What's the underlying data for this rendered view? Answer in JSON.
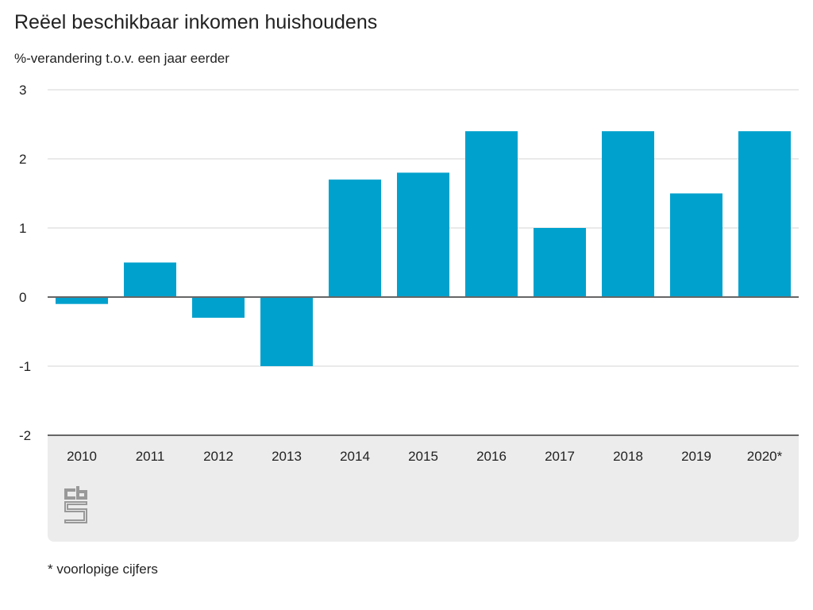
{
  "chart_data": {
    "type": "bar",
    "title": "Reëel beschikbaar inkomen huishoudens",
    "ylabel": "%-verandering t.o.v. een jaar eerder",
    "categories": [
      "2010",
      "2011",
      "2012",
      "2013",
      "2014",
      "2015",
      "2016",
      "2017",
      "2018",
      "2019",
      "2020*"
    ],
    "values": [
      -0.1,
      0.5,
      -0.3,
      -1.0,
      1.7,
      1.8,
      2.4,
      1.0,
      2.4,
      1.5,
      2.4
    ],
    "ylim": [
      -2,
      3
    ],
    "yticks": [
      "3",
      "2",
      "1",
      "0",
      "-1",
      "-2"
    ],
    "grid": true,
    "bar_color": "#00a1cd",
    "note": "* voorlopige cijfers"
  },
  "logo": "cbs"
}
